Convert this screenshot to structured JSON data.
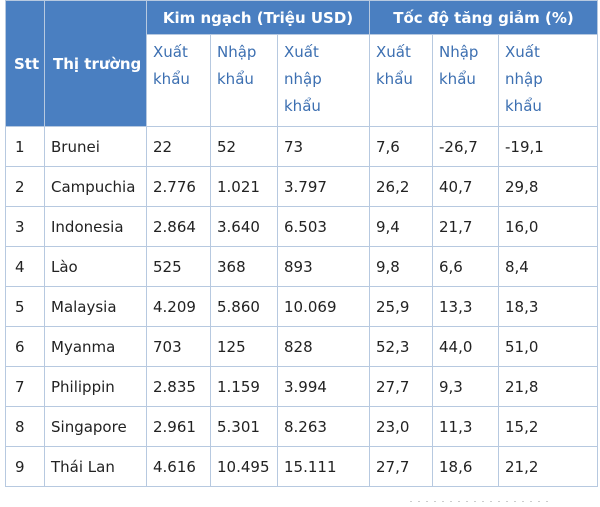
{
  "headers": {
    "stt": "Stt",
    "market": "Thị trường",
    "group_turnover": "Kim ngạch (Triệu USD)",
    "group_growth": "Tốc độ tăng giảm (%)",
    "sub": [
      [
        "Xuất",
        "khẩu"
      ],
      [
        "Nhập",
        "khẩu"
      ],
      [
        "Xuất",
        "nhập",
        "khẩu"
      ],
      [
        "Xuất",
        "khẩu"
      ],
      [
        "Nhập",
        "khẩu"
      ],
      [
        "Xuất",
        "nhập",
        "khẩu"
      ]
    ]
  },
  "rows": [
    [
      "1",
      "Brunei",
      "22",
      "52",
      "73",
      "7,6",
      "-26,7",
      "-19,1"
    ],
    [
      "2",
      "Campuchia",
      "2.776",
      "1.021",
      "3.797",
      "26,2",
      "40,7",
      "29,8"
    ],
    [
      "3",
      "Indonesia",
      "2.864",
      "3.640",
      "6.503",
      "9,4",
      "21,7",
      "16,0"
    ],
    [
      "4",
      "Lào",
      "525",
      "368",
      "893",
      "9,8",
      "6,6",
      "8,4"
    ],
    [
      "5",
      "Malaysia",
      "4.209",
      "5.860",
      "10.069",
      "25,9",
      "13,3",
      "18,3"
    ],
    [
      "6",
      "Myanma",
      "703",
      "125",
      "828",
      "52,3",
      "44,0",
      "51,0"
    ],
    [
      "7",
      "Philippin",
      "2.835",
      "1.159",
      "3.994",
      "27,7",
      "9,3",
      "21,8"
    ],
    [
      "8",
      "Singapore",
      "2.961",
      "5.301",
      "8.263",
      "23,0",
      "11,3",
      "15,2"
    ],
    [
      "9",
      "Thái Lan",
      "4.616",
      "10.495",
      "15.111",
      "27,7",
      "18,6",
      "21,2"
    ]
  ]
}
